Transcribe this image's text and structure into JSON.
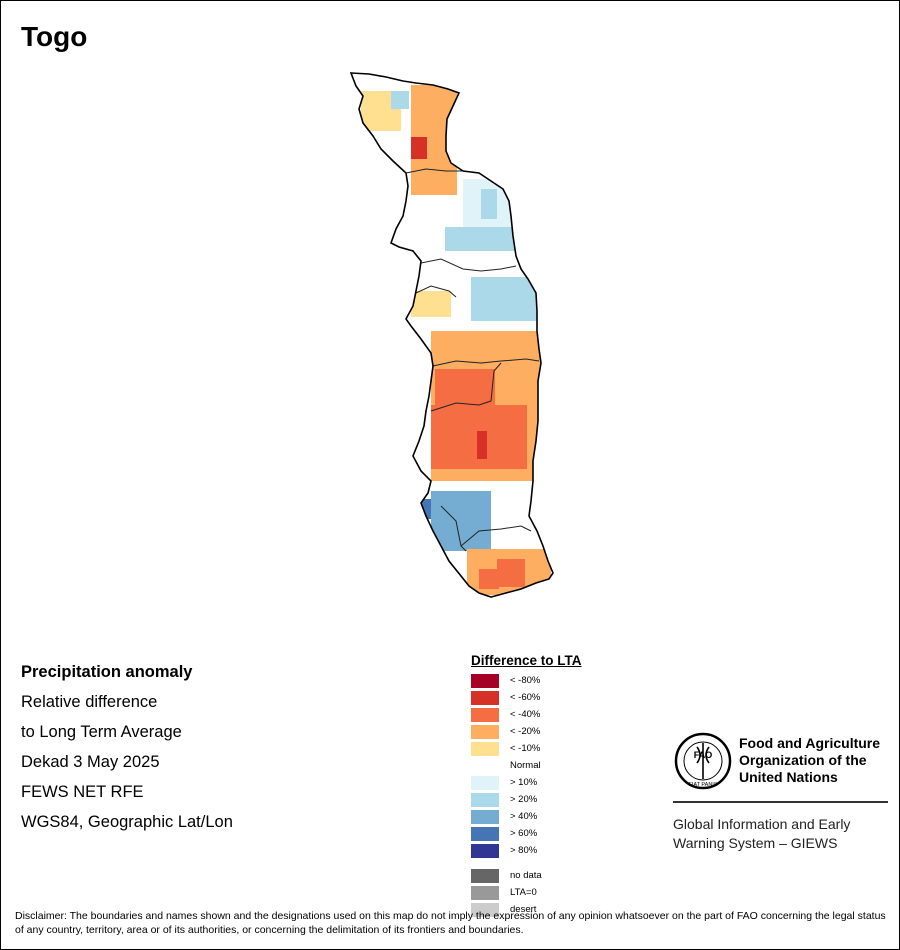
{
  "title": "Togo",
  "info": {
    "heading": "Precipitation anomaly",
    "lines": [
      "Relative difference",
      "to Long Term Average",
      "Dekad 3 May 2025",
      "FEWS NET RFE",
      "WGS84, Geographic Lat/Lon"
    ]
  },
  "legend": {
    "title": "Difference to LTA",
    "classes": [
      {
        "label": "< -80%",
        "color": "#a50026"
      },
      {
        "label": "< -60%",
        "color": "#d73027"
      },
      {
        "label": "< -40%",
        "color": "#f46d43"
      },
      {
        "label": "< -20%",
        "color": "#fdae61"
      },
      {
        "label": "< -10%",
        "color": "#fee090"
      },
      {
        "label": "Normal",
        "color": "#ffffff"
      },
      {
        "label": "> 10%",
        "color": "#e0f3f8"
      },
      {
        "label": "> 20%",
        "color": "#abd9e9"
      },
      {
        "label": "> 40%",
        "color": "#74add1"
      },
      {
        "label": "> 60%",
        "color": "#4575b4"
      },
      {
        "label": "> 80%",
        "color": "#313695"
      }
    ],
    "extra": [
      {
        "label": "no data",
        "color": "#666666"
      },
      {
        "label": "LTA=0",
        "color": "#999999"
      },
      {
        "label": "desert",
        "color": "#cccccc"
      }
    ]
  },
  "org": {
    "logo_letters": "FAO",
    "logo_motto": "FIAT PANIS",
    "name_lines": [
      "Food and Agriculture",
      "Organization of the",
      "United Nations"
    ],
    "system_lines": [
      "Global Information and Early",
      "Warning System – GIEWS"
    ]
  },
  "disclaimer": "Disclaimer: The boundaries and names shown and the designations used on this map do not imply the expression of any opinion whatsoever on the part of FAO concerning the legal status of any country, territory, area or of its authorities, or concerning the delimitation of its frontiers and boundaries.",
  "anomaly_zones": [
    {
      "region": "north-west corner",
      "class": "< -10%"
    },
    {
      "region": "north-west corner",
      "class": "> 20%"
    },
    {
      "region": "north",
      "class": "< -20%"
    },
    {
      "region": "north",
      "class": "< -60%"
    },
    {
      "region": "north-central",
      "class": "> 10%"
    },
    {
      "region": "north-central",
      "class": "> 20%"
    },
    {
      "region": "central",
      "class": "< -10%"
    },
    {
      "region": "central",
      "class": "> 20%"
    },
    {
      "region": "centre-south",
      "class": "< -20%"
    },
    {
      "region": "centre-south",
      "class": "< -40%"
    },
    {
      "region": "centre-south",
      "class": "< -60%"
    },
    {
      "region": "south-west",
      "class": "> 60%"
    },
    {
      "region": "south-west",
      "class": "> 40%"
    },
    {
      "region": "south",
      "class": "< -20%"
    },
    {
      "region": "south",
      "class": "< -40%"
    }
  ]
}
